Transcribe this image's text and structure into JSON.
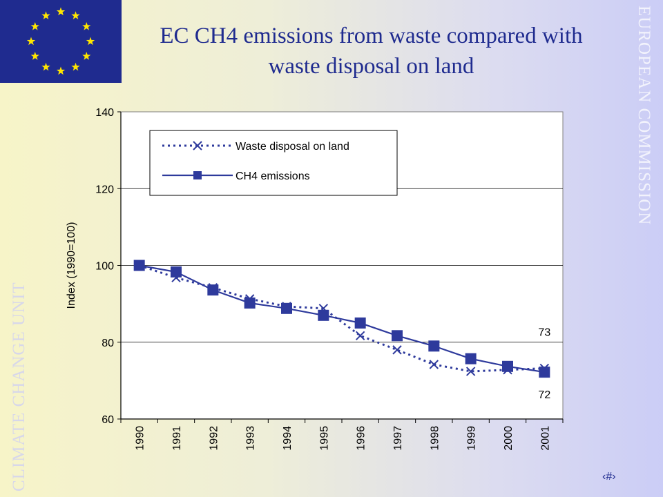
{
  "header": {
    "title_line1": "EC CH4 emissions from waste compared with",
    "title_line2": "waste disposal on land"
  },
  "side": {
    "left_label": "CLIMATE CHANGE UNIT",
    "right_label": "EUROPEAN COMMISSION"
  },
  "footer": {
    "page_number": "‹#›"
  },
  "colors": {
    "series": "#2e3a9c",
    "flag_bg": "#1f2b8f",
    "flag_star": "#ffe600"
  },
  "chart_data": {
    "type": "line",
    "ylabel": "Index (1990=100)",
    "ylim": [
      60,
      140
    ],
    "yticks": [
      60,
      80,
      100,
      120,
      140
    ],
    "grid": true,
    "legend_position": "top-left",
    "x": [
      "1990",
      "1991",
      "1992",
      "1993",
      "1994",
      "1995",
      "1996",
      "1997",
      "1998",
      "1999",
      "2000",
      "2001"
    ],
    "series": [
      {
        "name": "Waste disposal on land",
        "style": "dotted-x",
        "values": [
          100,
          96.8,
          94.2,
          91.3,
          89.3,
          88.8,
          81.7,
          78.0,
          74.2,
          72.4,
          72.8,
          73.2
        ]
      },
      {
        "name": "CH4 emissions",
        "style": "solid-square",
        "values": [
          100,
          98.3,
          93.6,
          90.2,
          88.8,
          87.0,
          85.0,
          81.7,
          79.0,
          75.7,
          73.7,
          72.2
        ]
      }
    ],
    "annotations": [
      {
        "text": "73",
        "series": 0,
        "index": 11,
        "placement": "above"
      },
      {
        "text": "72",
        "series": 1,
        "index": 11,
        "placement": "below"
      }
    ]
  }
}
